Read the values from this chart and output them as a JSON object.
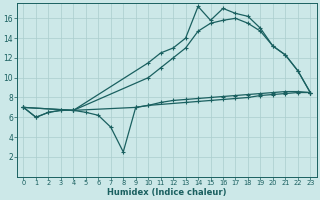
{
  "xlabel": "Humidex (Indice chaleur)",
  "bg_color": "#cce8e8",
  "grid_color": "#aacece",
  "line_color": "#1a6060",
  "xlim": [
    -0.5,
    23.5
  ],
  "ylim": [
    0,
    17.5
  ],
  "xticks": [
    0,
    1,
    2,
    3,
    4,
    5,
    6,
    7,
    8,
    9,
    10,
    11,
    12,
    13,
    14,
    15,
    16,
    17,
    18,
    19,
    20,
    21,
    22,
    23
  ],
  "yticks": [
    2,
    4,
    6,
    8,
    10,
    12,
    14,
    16
  ],
  "line_flat": [
    [
      0,
      7.0
    ],
    [
      1,
      6.0
    ],
    [
      2,
      6.5
    ],
    [
      3,
      6.7
    ],
    [
      4,
      6.7
    ],
    [
      9,
      7.0
    ],
    [
      10,
      7.2
    ],
    [
      13,
      7.5
    ],
    [
      14,
      7.6
    ],
    [
      15,
      7.7
    ],
    [
      16,
      7.8
    ],
    [
      17,
      7.9
    ],
    [
      18,
      8.0
    ],
    [
      19,
      8.2
    ],
    [
      20,
      8.3
    ],
    [
      21,
      8.4
    ],
    [
      22,
      8.5
    ],
    [
      23,
      8.5
    ]
  ],
  "line_dip": [
    [
      0,
      7.0
    ],
    [
      1,
      6.0
    ],
    [
      2,
      6.5
    ],
    [
      3,
      6.7
    ],
    [
      4,
      6.7
    ],
    [
      5,
      6.5
    ],
    [
      6,
      6.2
    ],
    [
      7,
      5.0
    ],
    [
      8,
      2.5
    ],
    [
      9,
      7.0
    ],
    [
      10,
      7.2
    ],
    [
      11,
      7.5
    ],
    [
      12,
      7.7
    ],
    [
      13,
      7.8
    ],
    [
      14,
      7.9
    ],
    [
      15,
      8.0
    ],
    [
      16,
      8.1
    ],
    [
      17,
      8.2
    ],
    [
      18,
      8.3
    ],
    [
      19,
      8.4
    ],
    [
      20,
      8.5
    ],
    [
      21,
      8.6
    ],
    [
      22,
      8.6
    ],
    [
      23,
      8.5
    ]
  ],
  "line_high": [
    [
      0,
      7.0
    ],
    [
      4,
      6.7
    ],
    [
      10,
      11.5
    ],
    [
      11,
      12.5
    ],
    [
      12,
      13.0
    ],
    [
      13,
      14.0
    ],
    [
      14,
      17.2
    ],
    [
      15,
      15.8
    ],
    [
      16,
      17.0
    ],
    [
      17,
      16.5
    ],
    [
      18,
      16.2
    ],
    [
      19,
      15.0
    ],
    [
      20,
      13.2
    ],
    [
      21,
      12.3
    ],
    [
      22,
      10.7
    ],
    [
      23,
      8.5
    ]
  ],
  "line_mid": [
    [
      0,
      7.0
    ],
    [
      4,
      6.7
    ],
    [
      10,
      10.0
    ],
    [
      11,
      11.0
    ],
    [
      12,
      12.0
    ],
    [
      13,
      13.0
    ],
    [
      14,
      14.7
    ],
    [
      15,
      15.5
    ],
    [
      16,
      15.8
    ],
    [
      17,
      16.0
    ],
    [
      18,
      15.5
    ],
    [
      19,
      14.7
    ],
    [
      20,
      13.2
    ],
    [
      21,
      12.3
    ],
    [
      22,
      10.7
    ],
    [
      23,
      8.5
    ]
  ]
}
